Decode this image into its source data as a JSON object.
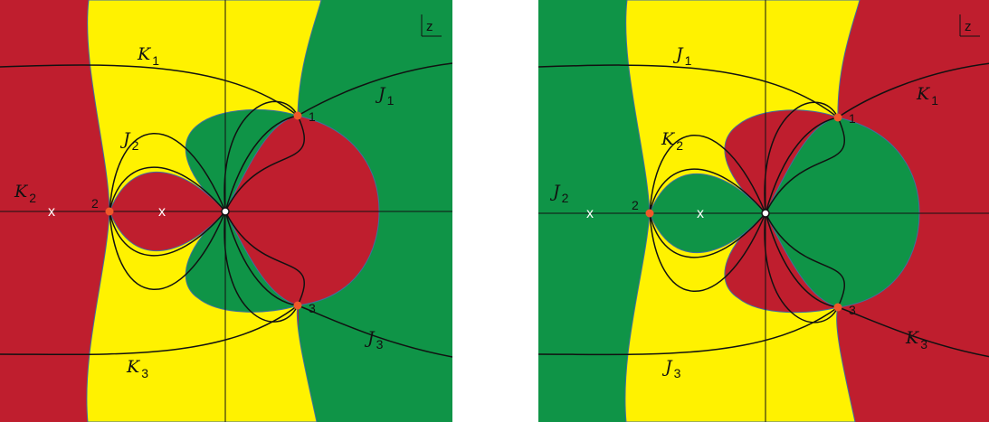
{
  "colors": {
    "red": "#bf1e2e",
    "green": "#0f9447",
    "yellow": "#fff200",
    "curve": "#111111",
    "saddle": "#f0582a"
  },
  "panels": [
    {
      "corner_label": "z",
      "outer_left": "red",
      "yellow_band": "yellow",
      "outer_right": "green",
      "lobe_upper_left": "green",
      "lobe_left": "red",
      "lobe_right": "red",
      "labels": {
        "top_curve": {
          "letter": "K",
          "sub": "1"
        },
        "right_upper_curve": {
          "letter": "J",
          "sub": "1"
        },
        "left_loop_curve": {
          "letter": "J",
          "sub": "2"
        },
        "left_axis_curve": {
          "letter": "K",
          "sub": "2"
        },
        "right_lower_curve": {
          "letter": "J",
          "sub": "3"
        },
        "bottom_curve": {
          "letter": "K",
          "sub": "3"
        }
      },
      "points": [
        "1",
        "2",
        "3"
      ],
      "crosses": [
        "x",
        "x"
      ]
    },
    {
      "corner_label": "z",
      "outer_left": "green",
      "yellow_band": "yellow",
      "outer_right": "red",
      "lobe_upper_left": "red",
      "lobe_left": "green",
      "lobe_right": "green",
      "labels": {
        "top_curve": {
          "letter": "J",
          "sub": "1"
        },
        "right_upper_curve": {
          "letter": "K",
          "sub": "1"
        },
        "left_loop_curve": {
          "letter": "K",
          "sub": "2"
        },
        "left_axis_curve": {
          "letter": "J",
          "sub": "2"
        },
        "right_lower_curve": {
          "letter": "K",
          "sub": "3"
        },
        "bottom_curve": {
          "letter": "J",
          "sub": "3"
        }
      },
      "points": [
        "1",
        "2",
        "3"
      ],
      "crosses": [
        "x",
        "x"
      ]
    }
  ]
}
